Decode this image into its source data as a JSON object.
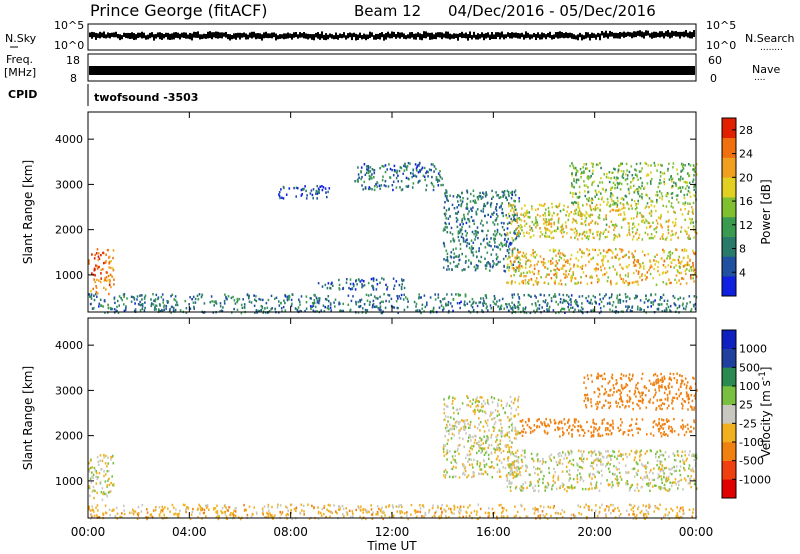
{
  "header": {
    "station": "Prince George (fitACF)",
    "beam": "Beam 12",
    "date_range": "04/Dec/2016 - 05/Dec/2016"
  },
  "status_panels": {
    "nsky_label": "N.Sky",
    "nsearch_label": "N.Search",
    "nsearch_marker": "........",
    "nave_label": "Nave",
    "nave_marker": "....",
    "noise_ticks_left": [
      "10^5",
      "10^0"
    ],
    "noise_ticks_right": [
      "10^5",
      "10^0"
    ],
    "freq_label_line1": "Freq.",
    "freq_label_line2": "[MHz]",
    "freq_ticks": [
      "18",
      "8"
    ],
    "nave_ticks": [
      "60",
      "0"
    ],
    "cpid_label": "CPID",
    "cpid_text": "twofsound  -3503"
  },
  "x_ticks": [
    "00:00",
    "04:00",
    "08:00",
    "12:00",
    "16:00",
    "20:00",
    "00:00"
  ],
  "colors": {
    "power": [
      "#1020e0",
      "#2050a0",
      "#2a7a6a",
      "#3a9a50",
      "#80c030",
      "#e0d020",
      "#f0a020",
      "#f07010",
      "#e02000"
    ],
    "velocity": [
      "#e00000",
      "#f04010",
      "#f08010",
      "#f0b020",
      "#c8c8c0",
      "#7ac040",
      "#2a8a50",
      "#2040a0",
      "#1020c0"
    ]
  },
  "chart_data": [
    {
      "type": "heatmap",
      "title": "Power",
      "xlabel": "",
      "ylabel": "Slant Range [km]",
      "xlim": [
        0,
        24
      ],
      "ylim": [
        180,
        4600
      ],
      "x_ticks": [
        "00:00",
        "04:00",
        "08:00",
        "12:00",
        "16:00",
        "20:00",
        "00:00"
      ],
      "y_ticks": [
        1000,
        2000,
        3000,
        4000
      ],
      "colorbar": {
        "label": "Power [dB]",
        "ticks": [
          "4",
          "8",
          "12",
          "16",
          "20",
          "24",
          "28"
        ],
        "range": [
          0,
          30
        ]
      },
      "regions": [
        {
          "t": [
            0,
            1.0
          ],
          "range_km": [
            600,
            1600
          ],
          "value": 24
        },
        {
          "t": [
            0,
            24
          ],
          "range_km": [
            180,
            600
          ],
          "value": 8
        },
        {
          "t": [
            9,
            12.5
          ],
          "range_km": [
            700,
            950
          ],
          "value": 6
        },
        {
          "t": [
            7.5,
            9.5
          ],
          "range_km": [
            2700,
            3000
          ],
          "value": 5
        },
        {
          "t": [
            10.5,
            14
          ],
          "range_km": [
            2900,
            3500
          ],
          "value": 7
        },
        {
          "t": [
            14,
            17
          ],
          "range_km": [
            1100,
            2900
          ],
          "value": 8
        },
        {
          "t": [
            16.5,
            24
          ],
          "range_km": [
            800,
            1600
          ],
          "value": 20
        },
        {
          "t": [
            16.5,
            24
          ],
          "range_km": [
            1800,
            2600
          ],
          "value": 18
        },
        {
          "t": [
            19,
            24
          ],
          "range_km": [
            2600,
            3500
          ],
          "value": 14
        }
      ]
    },
    {
      "type": "heatmap",
      "title": "Velocity",
      "xlabel": "Time UT",
      "ylabel": "Slant Range [km]",
      "xlim": [
        0,
        24
      ],
      "ylim": [
        180,
        4600
      ],
      "x_ticks": [
        "00:00",
        "04:00",
        "08:00",
        "12:00",
        "16:00",
        "20:00",
        "00:00"
      ],
      "y_ticks": [
        1000,
        2000,
        3000,
        4000
      ],
      "colorbar": {
        "label": "Velocity [m s^-1]",
        "ticks": [
          "1000",
          "500",
          "100",
          "25",
          "-25",
          "-100",
          "-500",
          "-1000"
        ]
      },
      "regions": [
        {
          "t": [
            0,
            1.0
          ],
          "range_km": [
            600,
            1600
          ],
          "value": 0
        },
        {
          "t": [
            0,
            24
          ],
          "range_km": [
            180,
            500
          ],
          "value": -60
        },
        {
          "t": [
            14,
            17
          ],
          "range_km": [
            1100,
            2900
          ],
          "value": 0
        },
        {
          "t": [
            16.5,
            24
          ],
          "range_km": [
            800,
            1700
          ],
          "value": 0
        },
        {
          "t": [
            17,
            24
          ],
          "range_km": [
            2000,
            2400
          ],
          "value": -300
        },
        {
          "t": [
            19.5,
            24
          ],
          "range_km": [
            2600,
            3400
          ],
          "value": -200
        }
      ]
    }
  ]
}
